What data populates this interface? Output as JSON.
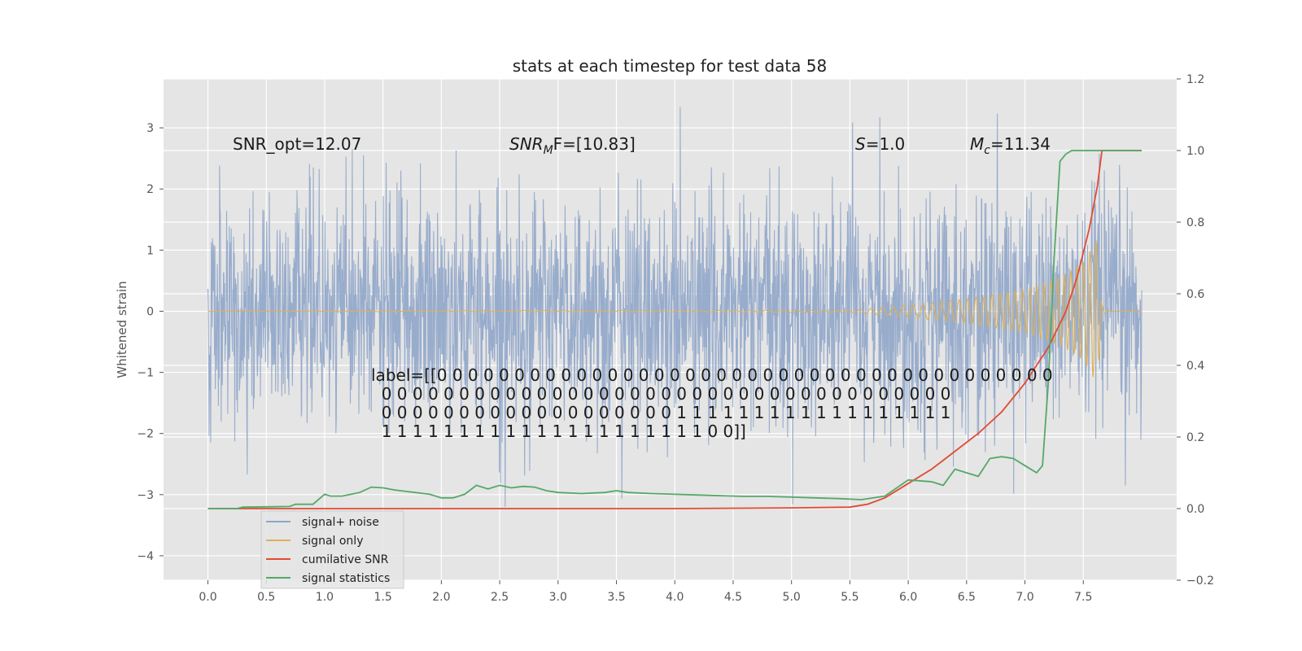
{
  "chart_data": {
    "type": "line",
    "title": "stats at each timestep for test data 58",
    "ylabel": "Whitened strain",
    "xlim": [
      -0.38,
      8.3
    ],
    "ylim": [
      -4.4,
      3.8
    ],
    "ylim_right": [
      -0.2,
      1.2
    ],
    "x_ticks": [
      0.0,
      0.5,
      1.0,
      1.5,
      2.0,
      2.5,
      3.0,
      3.5,
      4.0,
      4.5,
      5.0,
      5.5,
      6.0,
      6.5,
      7.0,
      7.5
    ],
    "x_tick_labels": [
      "0.0",
      "0.5",
      "1.0",
      "1.5",
      "2.0",
      "2.5",
      "3.0",
      "3.5",
      "4.0",
      "4.5",
      "5.0",
      "5.5",
      "6.0",
      "6.5",
      "7.0",
      "7.5"
    ],
    "y_ticks": [
      3,
      2,
      1,
      0,
      -1,
      -2,
      -3,
      -4
    ],
    "y_tick_labels": [
      "3",
      "2",
      "1",
      "0",
      "−1",
      "−2",
      "−3",
      "−4"
    ],
    "y_ticks_right": [
      1.2,
      1.0,
      0.8,
      0.6,
      0.4,
      0.2,
      0.0,
      -0.2
    ],
    "y_tick_labels_right": [
      "1.2",
      "1.0",
      "0.8",
      "0.6",
      "0.4",
      "0.2",
      "0.0",
      "−0.2"
    ],
    "grid": true,
    "legend_position": "lower-left",
    "series": [
      {
        "name": "signal+ noise",
        "color": "#8fa5c9",
        "axis": "left",
        "description_range": [
          -3.2,
          3.5
        ],
        "x_range": [
          0.0,
          8.0
        ]
      },
      {
        "name": "signal only",
        "color": "#e0b050",
        "axis": "left",
        "envelope_points": [
          [
            0.0,
            0.0
          ],
          [
            5.5,
            0.02
          ],
          [
            6.0,
            0.1
          ],
          [
            6.5,
            0.2
          ],
          [
            7.0,
            0.35
          ],
          [
            7.3,
            0.55
          ],
          [
            7.5,
            0.8
          ],
          [
            7.62,
            1.2
          ],
          [
            7.66,
            0.1
          ],
          [
            7.7,
            0.0
          ],
          [
            8.0,
            0.0
          ]
        ]
      },
      {
        "name": "cumilative SNR",
        "color": "#e24a33",
        "axis": "right",
        "points": [
          [
            0.0,
            0.0
          ],
          [
            1.0,
            0.0
          ],
          [
            2.0,
            0.0
          ],
          [
            3.0,
            0.0
          ],
          [
            4.0,
            0.0
          ],
          [
            5.0,
            0.002
          ],
          [
            5.5,
            0.004
          ],
          [
            5.65,
            0.012
          ],
          [
            5.8,
            0.03
          ],
          [
            6.0,
            0.07
          ],
          [
            6.2,
            0.11
          ],
          [
            6.4,
            0.16
          ],
          [
            6.6,
            0.21
          ],
          [
            6.8,
            0.27
          ],
          [
            7.0,
            0.35
          ],
          [
            7.2,
            0.45
          ],
          [
            7.35,
            0.55
          ],
          [
            7.45,
            0.65
          ],
          [
            7.55,
            0.78
          ],
          [
            7.62,
            0.9
          ],
          [
            7.66,
            1.0
          ],
          [
            8.0,
            1.0
          ]
        ]
      },
      {
        "name": "signal statistics",
        "color": "#55a868",
        "axis": "right",
        "points": [
          [
            0.0,
            0.0
          ],
          [
            0.25,
            0.0
          ],
          [
            0.3,
            0.004
          ],
          [
            0.5,
            0.005
          ],
          [
            0.7,
            0.006
          ],
          [
            0.75,
            0.012
          ],
          [
            0.9,
            0.012
          ],
          [
            1.0,
            0.04
          ],
          [
            1.05,
            0.035
          ],
          [
            1.15,
            0.035
          ],
          [
            1.3,
            0.045
          ],
          [
            1.4,
            0.06
          ],
          [
            1.5,
            0.058
          ],
          [
            1.6,
            0.052
          ],
          [
            1.7,
            0.048
          ],
          [
            1.9,
            0.04
          ],
          [
            2.0,
            0.03
          ],
          [
            2.1,
            0.03
          ],
          [
            2.2,
            0.04
          ],
          [
            2.3,
            0.065
          ],
          [
            2.4,
            0.055
          ],
          [
            2.5,
            0.065
          ],
          [
            2.6,
            0.058
          ],
          [
            2.7,
            0.062
          ],
          [
            2.8,
            0.06
          ],
          [
            2.9,
            0.05
          ],
          [
            3.0,
            0.045
          ],
          [
            3.2,
            0.042
          ],
          [
            3.4,
            0.045
          ],
          [
            3.5,
            0.05
          ],
          [
            3.6,
            0.045
          ],
          [
            3.8,
            0.042
          ],
          [
            4.0,
            0.04
          ],
          [
            4.2,
            0.038
          ],
          [
            4.4,
            0.036
          ],
          [
            4.6,
            0.034
          ],
          [
            4.8,
            0.034
          ],
          [
            5.0,
            0.032
          ],
          [
            5.2,
            0.03
          ],
          [
            5.4,
            0.028
          ],
          [
            5.6,
            0.025
          ],
          [
            5.8,
            0.035
          ],
          [
            6.0,
            0.08
          ],
          [
            6.2,
            0.075
          ],
          [
            6.3,
            0.065
          ],
          [
            6.4,
            0.11
          ],
          [
            6.5,
            0.1
          ],
          [
            6.6,
            0.09
          ],
          [
            6.7,
            0.14
          ],
          [
            6.8,
            0.145
          ],
          [
            6.9,
            0.14
          ],
          [
            7.0,
            0.12
          ],
          [
            7.1,
            0.1
          ],
          [
            7.15,
            0.12
          ],
          [
            7.2,
            0.35
          ],
          [
            7.25,
            0.7
          ],
          [
            7.3,
            0.97
          ],
          [
            7.35,
            0.99
          ],
          [
            7.4,
            1.0
          ],
          [
            8.0,
            1.0
          ]
        ]
      }
    ],
    "annotations": {
      "snr_opt": "SNR_opt=12.07",
      "snr_mf_base": "SNR",
      "snr_mf_sub": "M",
      "snr_mf_rest": "F=[10.83]",
      "s_label_italic": "S",
      "s_label_rest": "=1.0",
      "mc_label_base": "M",
      "mc_label_sub": "c",
      "mc_label_rest": "=11.34",
      "label_lines": [
        "label=[[0 0 0 0 0 0 0 0 0 0 0 0 0 0 0 0 0 0 0 0 0 0 0 0 0 0 0 0 0 0 0 0 0 0 0 0 0 0 0 0",
        "  0 0 0 0 0 0 0 0 0 0 0 0 0 0 0 0 0 0 0 0 0 0 0 0 0 0 0 0 0 0 0 0 0 0 0 0 0",
        "  0 0 0 0 0 0 0 0 0 0 0 0 0 0 0 0 0 0 0 1 1 1 1 1 1 1 1 1 1 1 1 1 1 1 1 1 1",
        "  1 1 1 1 1 1 1 1 1 1 1 1 1 1 1 1 1 1 1 1 1 0 0]]"
      ]
    }
  }
}
